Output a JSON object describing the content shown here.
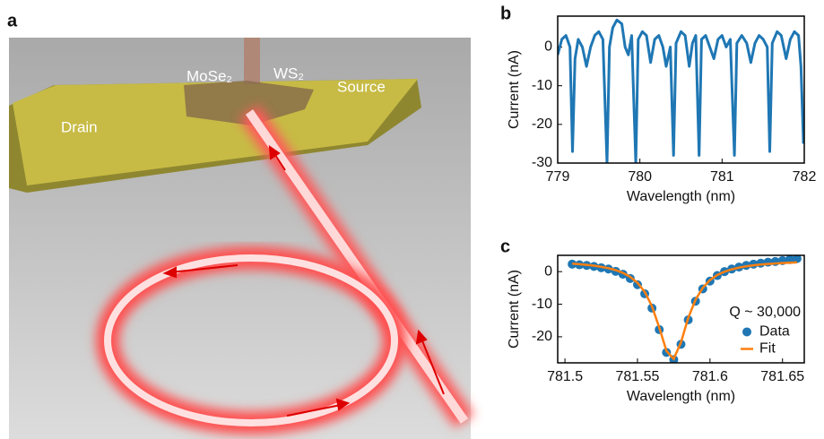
{
  "panel_a": {
    "label": "a",
    "labels": {
      "drain": "Drain",
      "mose2": "MoSe₂",
      "ws2": "WS₂",
      "source": "Source"
    }
  },
  "chart_data": [
    {
      "type": "line",
      "panel": "b",
      "xlabel": "Wavelength (nm)",
      "ylabel": "Current (nA)",
      "color": "#1f77b4",
      "x": [
        779.0,
        779.05,
        779.1,
        779.15,
        779.18,
        779.21,
        779.25,
        779.3,
        779.35,
        779.4,
        779.45,
        779.5,
        779.55,
        779.6,
        779.63,
        779.67,
        779.72,
        779.78,
        779.82,
        779.86,
        779.9,
        779.95,
        779.98,
        780.03,
        780.08,
        780.13,
        780.18,
        780.23,
        780.28,
        780.32,
        780.37,
        780.41,
        780.44,
        780.5,
        780.55,
        780.6,
        780.64,
        780.68,
        780.72,
        780.75,
        780.8,
        780.85,
        780.9,
        780.95,
        781.0,
        781.05,
        781.1,
        781.15,
        781.18,
        781.24,
        781.3,
        781.35,
        781.4,
        781.45,
        781.5,
        781.55,
        781.58,
        781.61,
        781.67,
        781.72,
        781.78,
        781.83,
        781.88,
        781.93,
        781.96,
        781.99
      ],
      "values": [
        -2,
        2,
        3,
        0,
        -27,
        -3,
        2,
        0,
        -5,
        0,
        3,
        4,
        2,
        -30,
        0,
        5,
        7,
        6,
        0,
        -2,
        3,
        -30,
        2,
        4,
        3,
        -4,
        2,
        3,
        0,
        -5,
        0,
        -28,
        1,
        4,
        3,
        -5,
        1,
        3,
        -28,
        2,
        3,
        0,
        -3,
        2,
        3,
        0,
        2,
        -28,
        1,
        3,
        1,
        -4,
        1,
        3,
        2,
        0,
        -27,
        1,
        4,
        3,
        -3,
        2,
        4,
        3,
        -5,
        -25
      ],
      "xlim": [
        779,
        782
      ],
      "xticks": [
        779,
        780,
        781,
        782
      ],
      "ylim": [
        -30,
        8
      ],
      "yticks": [
        -30,
        -20,
        -10,
        0
      ]
    },
    {
      "type": "scatter",
      "panel": "c",
      "xlabel": "Wavelength (nm)",
      "ylabel": "Current (nA)",
      "annotation": "Q ~ 30,000",
      "series": [
        {
          "name": "Data",
          "color": "#1f77b4",
          "mode": "markers",
          "x": [
            781.505,
            781.51,
            781.515,
            781.52,
            781.525,
            781.53,
            781.535,
            781.54,
            781.545,
            781.55,
            781.555,
            781.56,
            781.565,
            781.57,
            781.575,
            781.58,
            781.585,
            781.59,
            781.595,
            781.6,
            781.605,
            781.61,
            781.615,
            781.62,
            781.625,
            781.63,
            781.635,
            781.64,
            781.645,
            781.65,
            781.655,
            781.66
          ],
          "values": [
            2.3,
            2.1,
            1.9,
            1.6,
            1.2,
            0.8,
            0.1,
            -0.8,
            -2.1,
            -4.0,
            -6.8,
            -11.2,
            -17.8,
            -24.8,
            -27.0,
            -22.3,
            -14.8,
            -9.1,
            -5.3,
            -2.9,
            -1.2,
            0,
            0.8,
            1.4,
            1.9,
            2.3,
            2.6,
            2.9,
            3.1,
            3.4,
            3.7,
            4.0
          ]
        },
        {
          "name": "Fit",
          "color": "#ff7f0e",
          "mode": "line",
          "x": [
            781.505,
            781.51,
            781.515,
            781.52,
            781.525,
            781.53,
            781.535,
            781.54,
            781.545,
            781.55,
            781.555,
            781.56,
            781.565,
            781.57,
            781.575,
            781.58,
            781.585,
            781.59,
            781.595,
            781.6,
            781.605,
            781.61,
            781.615,
            781.62,
            781.625,
            781.63,
            781.635,
            781.64,
            781.645,
            781.65,
            781.655,
            781.66
          ],
          "values": [
            2.46,
            2.29,
            2.09,
            1.83,
            1.49,
            1.06,
            0.45,
            -0.39,
            -1.6,
            -3.42,
            -6.21,
            -10.62,
            -17.1,
            -24.35,
            -26.8,
            -21.7,
            -14.2,
            -8.65,
            -4.95,
            -2.6,
            -1.06,
            -0.02,
            0.71,
            1.24,
            1.64,
            1.94,
            2.17,
            2.36,
            2.51,
            2.63,
            2.73,
            2.82
          ]
        }
      ],
      "xlim": [
        781.495,
        781.665
      ],
      "xticks": [
        781.5,
        781.55,
        781.6,
        781.65
      ],
      "ylim": [
        -28,
        5
      ],
      "yticks": [
        -20,
        -10,
        0
      ]
    }
  ]
}
